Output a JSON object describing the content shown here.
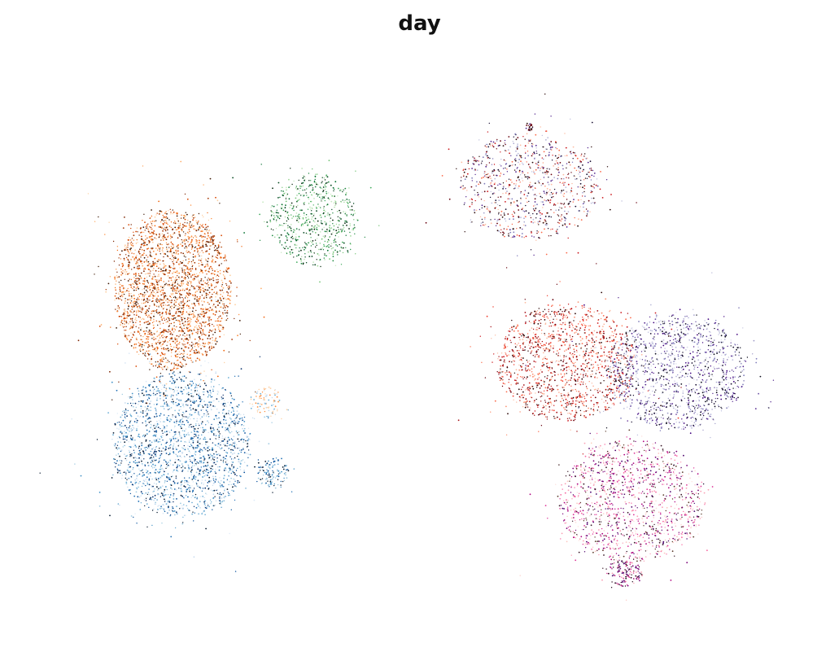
{
  "chart_data": {
    "type": "scatter",
    "title": "day",
    "xlabel": "",
    "ylabel": "",
    "axes_visible": false,
    "grid": false,
    "legend": "none",
    "xlim": [
      0,
      100
    ],
    "ylim": [
      0,
      100
    ],
    "point_size_note": "tiny dots",
    "clusters": [
      {
        "cx": 15.8,
        "cy": 60.0,
        "rx": 8.0,
        "ry": 14.4,
        "count": 2600,
        "colors": [
          "#fdd0a2",
          "#fdae6b",
          "#fd8d3c",
          "#f16913",
          "#d94801",
          "#a63603",
          "#7f2704",
          "#3f1a05"
        ]
      },
      {
        "cx": 17.0,
        "cy": 32.5,
        "rx": 9.5,
        "ry": 13.0,
        "count": 2100,
        "colors": [
          "#deebf7",
          "#c6dbef",
          "#9ecae1",
          "#6baed6",
          "#4292c6",
          "#2171b5",
          "#08519c",
          "#08306b",
          "#0b1e33"
        ]
      },
      {
        "cx": 28.5,
        "cy": 40.0,
        "rx": 2.2,
        "ry": 2.8,
        "count": 90,
        "colors": [
          "#fdd0a2",
          "#fd8d3c",
          "#c6dbef",
          "#6baed6"
        ]
      },
      {
        "cx": 29.5,
        "cy": 27.3,
        "rx": 2.2,
        "ry": 2.8,
        "count": 120,
        "colors": [
          "#9ecae1",
          "#4292c6",
          "#08519c",
          "#0b1e33"
        ]
      },
      {
        "cx": 35.0,
        "cy": 72.5,
        "rx": 6.0,
        "ry": 8.3,
        "count": 650,
        "colors": [
          "#c7e9c0",
          "#a1d99b",
          "#74c476",
          "#41ab5d",
          "#238b45",
          "#006d2c",
          "#00441b",
          "#0a2a10"
        ]
      },
      {
        "cx": 64.5,
        "cy": 78.5,
        "rx": 9.5,
        "ry": 9.5,
        "count": 900,
        "colors": [
          "#fcbba1",
          "#fb6a4a",
          "#cb181d",
          "#67000d",
          "#2a0a0a",
          "#bcbddc",
          "#807dba",
          "#54278f",
          "#1a1033"
        ]
      },
      {
        "cx": 69.5,
        "cy": 47.0,
        "rx": 9.5,
        "ry": 10.5,
        "count": 1400,
        "colors": [
          "#fcbba1",
          "#fc9272",
          "#fb6a4a",
          "#ef3b2c",
          "#cb181d",
          "#a50f15",
          "#67000d",
          "#2a0505"
        ]
      },
      {
        "cx": 84.5,
        "cy": 45.5,
        "rx": 9.5,
        "ry": 10.5,
        "count": 1300,
        "colors": [
          "#dadaeb",
          "#bcbddc",
          "#9e9ac8",
          "#807dba",
          "#6a51a3",
          "#54278f",
          "#3f007d",
          "#1a1033",
          "#0f0f1f"
        ]
      },
      {
        "cx": 78.5,
        "cy": 22.5,
        "rx": 10.0,
        "ry": 11.0,
        "count": 1300,
        "colors": [
          "#fde0dd",
          "#fcc5c0",
          "#fa9fb5",
          "#f768a1",
          "#dd3497",
          "#ae017e",
          "#7a0177",
          "#49006a",
          "#3b1a2a",
          "#5a3a2a"
        ]
      },
      {
        "cx": 77.5,
        "cy": 9.5,
        "rx": 2.5,
        "ry": 2.3,
        "count": 150,
        "colors": [
          "#fa9fb5",
          "#dd3497",
          "#7a0177",
          "#49006a",
          "#2a0a1f"
        ]
      },
      {
        "cx": 64.5,
        "cy": 89.0,
        "rx": 0.5,
        "ry": 0.8,
        "count": 25,
        "colors": [
          "#2a0a0a",
          "#67000d",
          "#54278f"
        ]
      }
    ]
  }
}
